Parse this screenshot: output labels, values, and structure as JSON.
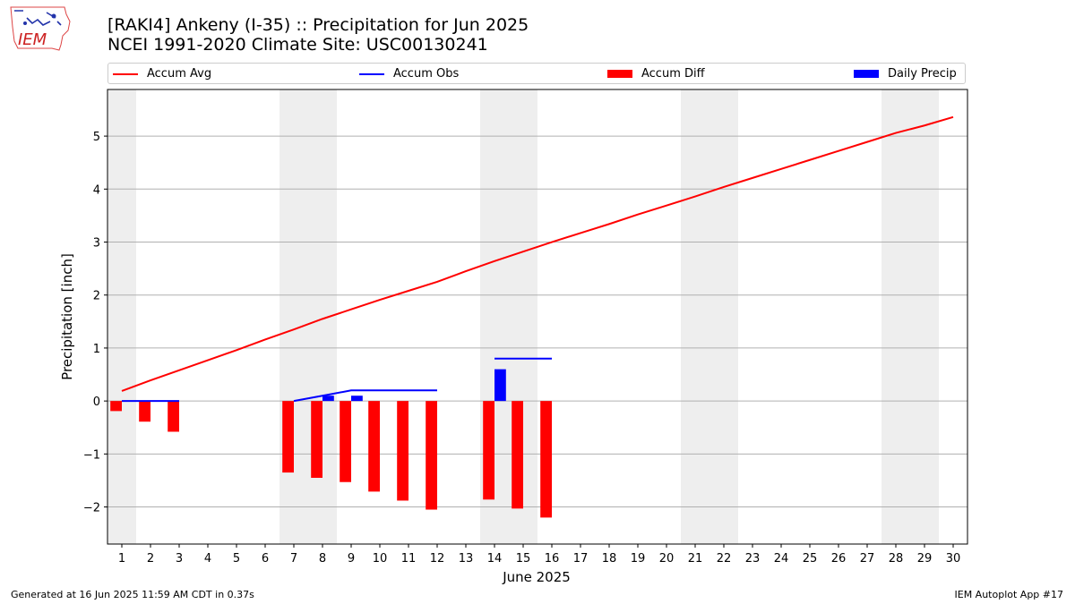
{
  "header": {
    "title_line1": "[RAKI4] Ankeny (I-35) :: Precipitation for Jun 2025",
    "title_line2": "NCEI 1991-2020 Climate Site: USC00130241"
  },
  "logo": {
    "text": "IEM"
  },
  "footer": {
    "left": "Generated at 16 Jun 2025 11:59 AM CDT in 0.37s",
    "right": "IEM Autoplot App #17"
  },
  "colors": {
    "avg": "#ff0000",
    "obs": "#0000ff",
    "diff": "#ff0000",
    "daily": "#0000ff",
    "weekend": "#eeeeee",
    "grid": "#b0b0b0"
  },
  "chart_data": {
    "type": "bar",
    "xlabel": "June 2025",
    "ylabel": "Precipitation [inch]",
    "xlim": [
      0.5,
      30.5
    ],
    "ylim": [
      -2.7,
      5.88
    ],
    "yticks": [
      -2,
      -1,
      0,
      1,
      2,
      3,
      4,
      5
    ],
    "ytick_labels": [
      "−2",
      "−1",
      "0",
      "1",
      "2",
      "3",
      "4",
      "5"
    ],
    "xticks": [
      1,
      2,
      3,
      4,
      5,
      6,
      7,
      8,
      9,
      10,
      11,
      12,
      13,
      14,
      15,
      16,
      17,
      18,
      19,
      20,
      21,
      22,
      23,
      24,
      25,
      26,
      27,
      28,
      29,
      30
    ],
    "grid": "horizontal",
    "legend_placement": "top",
    "weekend_shading": [
      [
        0.5,
        1.5
      ],
      [
        6.5,
        8.5
      ],
      [
        13.5,
        15.5
      ],
      [
        20.5,
        22.5
      ],
      [
        27.5,
        29.5
      ]
    ],
    "series": [
      {
        "name": "Accum Avg",
        "kind": "line",
        "x": [
          1,
          2,
          3,
          4,
          5,
          6,
          7,
          8,
          9,
          10,
          11,
          12,
          13,
          14,
          15,
          16,
          17,
          18,
          19,
          20,
          21,
          22,
          23,
          24,
          25,
          26,
          27,
          28,
          29,
          30
        ],
        "values": [
          0.19,
          0.39,
          0.58,
          0.77,
          0.96,
          1.16,
          1.35,
          1.55,
          1.73,
          1.91,
          2.08,
          2.25,
          2.45,
          2.64,
          2.82,
          3.0,
          3.17,
          3.34,
          3.52,
          3.69,
          3.86,
          4.04,
          4.21,
          4.38,
          4.55,
          4.72,
          4.89,
          5.06,
          5.2,
          5.36
        ]
      },
      {
        "name": "Accum Obs",
        "kind": "line",
        "segments": [
          {
            "x": [
              1,
              2,
              3
            ],
            "values": [
              0,
              0,
              0
            ]
          },
          {
            "x": [
              7,
              8,
              9,
              10,
              11,
              12
            ],
            "values": [
              0,
              0.1,
              0.2,
              0.2,
              0.2,
              0.2
            ]
          },
          {
            "x": [
              14,
              15,
              16
            ],
            "values": [
              0.8,
              0.8,
              0.8
            ]
          }
        ]
      },
      {
        "name": "Accum Diff",
        "kind": "bar",
        "x": [
          1,
          2,
          3,
          7,
          8,
          9,
          10,
          11,
          12,
          14,
          15,
          16
        ],
        "values": [
          -0.19,
          -0.39,
          -0.58,
          -1.35,
          -1.45,
          -1.53,
          -1.71,
          -1.88,
          -2.05,
          -1.86,
          -2.03,
          -2.2
        ]
      },
      {
        "name": "Daily Precip",
        "kind": "bar",
        "x": [
          8,
          9,
          14
        ],
        "values": [
          0.1,
          0.1,
          0.6
        ]
      }
    ]
  }
}
